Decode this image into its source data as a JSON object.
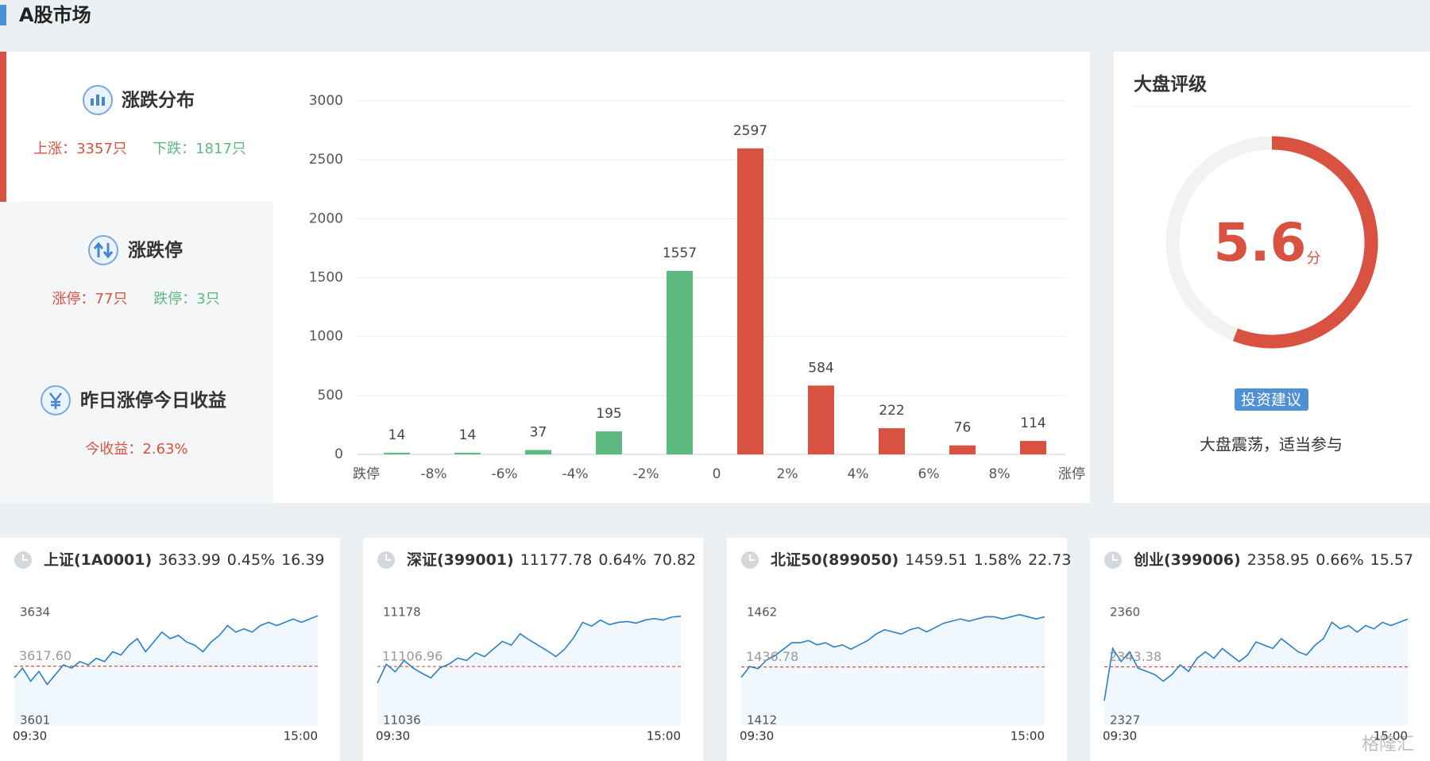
{
  "header": {
    "title": "A股市场"
  },
  "summary": {
    "distribution": {
      "title": "涨跌分布",
      "up": "上涨：3357只",
      "down": "下跌：1817只"
    },
    "limit": {
      "title": "涨跌停",
      "up": "涨停：77只",
      "down": "跌停：3只"
    },
    "yesterday": {
      "title": "昨日涨停今日收益",
      "return": "今收益：2.63%"
    }
  },
  "rating": {
    "title": "大盘评级",
    "score": 5.6,
    "unit": "分",
    "scale": [
      0,
      10
    ],
    "color": "#d95140",
    "button": "投资建议",
    "advice": "大盘震荡，适当参与"
  },
  "chart_data": [
    {
      "type": "bar",
      "x_labels": [
        "跌停",
        "-8%",
        "-6%",
        "-4%",
        "-2%",
        "0",
        "2%",
        "4%",
        "6%",
        "8%",
        "涨停"
      ],
      "values": [
        14,
        14,
        37,
        195,
        1557,
        2597,
        584,
        222,
        76,
        114
      ],
      "colors": [
        "#5cb97f",
        "#5cb97f",
        "#5cb97f",
        "#5cb97f",
        "#5cb97f",
        "#d95140",
        "#d95140",
        "#d95140",
        "#d95140",
        "#d95140"
      ],
      "ylim": [
        0,
        3000
      ],
      "yticks": [
        0,
        500,
        1000,
        1500,
        2000,
        2500,
        3000
      ],
      "grid": true
    },
    {
      "type": "line",
      "title": "上证(1A0001)",
      "price": "3633.99",
      "change_pct": "0.45%",
      "change": "16.39",
      "x_labels": [
        "09:30",
        "15:00"
      ],
      "color": "#2a7fc9",
      "values": [
        3614,
        3617,
        3613,
        3616,
        3612,
        3615,
        3618,
        3617,
        3619,
        3618,
        3620,
        3619,
        3622,
        3621,
        3624,
        3626,
        3622,
        3625,
        3628,
        3626,
        3627,
        3625,
        3624,
        3622,
        3625,
        3627,
        3630,
        3628,
        3629,
        3628,
        3630,
        3631,
        3630,
        3631,
        3632,
        3631,
        3632,
        3633
      ],
      "ylim": [
        3601,
        3634
      ],
      "yticks": [
        3601,
        3634
      ],
      "baseline": {
        "value": 3617.6,
        "label": "3617.60"
      }
    },
    {
      "type": "line",
      "title": "深证(399001)",
      "price": "11177.78",
      "change_pct": "0.64%",
      "change": "70.82",
      "x_labels": [
        "09:30",
        "15:00"
      ],
      "color": "#2a7fc9",
      "values": [
        11085,
        11110,
        11100,
        11115,
        11105,
        11098,
        11092,
        11105,
        11110,
        11118,
        11115,
        11125,
        11120,
        11130,
        11140,
        11135,
        11150,
        11142,
        11135,
        11128,
        11120,
        11130,
        11145,
        11165,
        11160,
        11168,
        11162,
        11165,
        11166,
        11164,
        11168,
        11170,
        11168,
        11172,
        11173
      ],
      "ylim": [
        11036,
        11178
      ],
      "yticks": [
        11036,
        11178
      ],
      "baseline": {
        "value": 11106.96,
        "label": "11106.96"
      }
    },
    {
      "type": "line",
      "title": "北证50(899050)",
      "price": "1459.51",
      "change_pct": "1.58%",
      "change": "22.73",
      "x_labels": [
        "09:30",
        "15:00"
      ],
      "color": "#2a7fc9",
      "values": [
        1432,
        1437,
        1436,
        1440,
        1442,
        1445,
        1448,
        1448,
        1449,
        1447,
        1448,
        1446,
        1447,
        1445,
        1447,
        1449,
        1452,
        1454,
        1453,
        1452,
        1454,
        1455,
        1453,
        1455,
        1457,
        1458,
        1459,
        1458,
        1459,
        1460,
        1460,
        1459,
        1460,
        1461,
        1460,
        1459,
        1460
      ],
      "ylim": [
        1412,
        1462
      ],
      "yticks": [
        1412,
        1462
      ],
      "baseline": {
        "value": 1436.78,
        "label": "1436.78"
      }
    },
    {
      "type": "line",
      "title": "创业(399006)",
      "price": "2358.95",
      "change_pct": "0.66%",
      "change": "15.57",
      "x_labels": [
        "09:30",
        "15:00"
      ],
      "color": "#2a7fc9",
      "values": [
        2333,
        2349,
        2345,
        2348,
        2343,
        2342,
        2341,
        2339,
        2341,
        2344,
        2342,
        2346,
        2348,
        2346,
        2349,
        2347,
        2345,
        2347,
        2351,
        2350,
        2349,
        2352,
        2350,
        2348,
        2347,
        2350,
        2352,
        2357,
        2355,
        2356,
        2354,
        2356,
        2355,
        2357,
        2356,
        2357,
        2358
      ],
      "ylim": [
        2327,
        2360
      ],
      "yticks": [
        2327,
        2360
      ],
      "baseline": {
        "value": 2343.38,
        "label": "2343.38"
      }
    }
  ],
  "watermark": "格隆汇"
}
